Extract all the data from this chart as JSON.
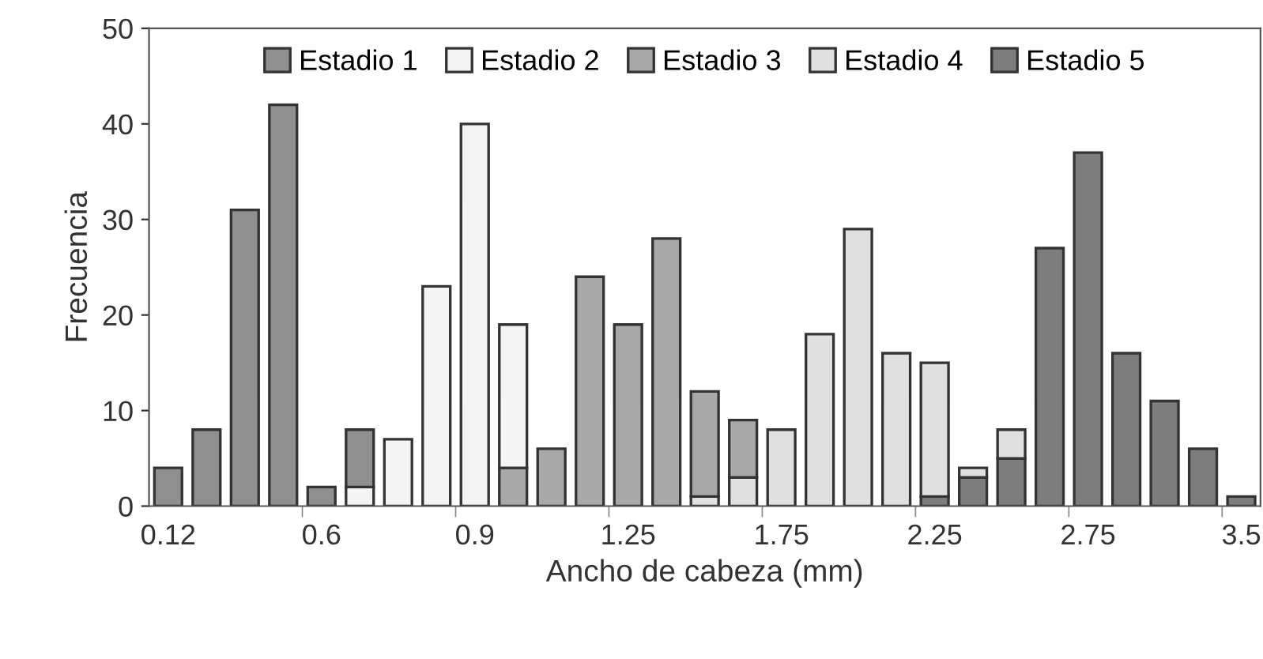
{
  "chart_data": {
    "type": "bar",
    "stacked": true,
    "xlabel": "Ancho de cabeza (mm)",
    "ylabel": "Frecuencia",
    "categories": [
      "0.12",
      null,
      null,
      null,
      "0.6",
      null,
      null,
      null,
      "0.9",
      null,
      null,
      null,
      "1.25",
      null,
      null,
      null,
      "1.75",
      null,
      null,
      null,
      "2.25",
      null,
      null,
      null,
      "2.75",
      null,
      null,
      null,
      "3.5"
    ],
    "series": [
      {
        "name": "Estadio 5",
        "color": "#7d7d7d",
        "values": [
          null,
          null,
          null,
          null,
          null,
          null,
          null,
          null,
          null,
          null,
          null,
          null,
          null,
          null,
          null,
          null,
          null,
          null,
          null,
          null,
          1,
          3,
          5,
          27,
          37,
          16,
          11,
          6,
          1
        ]
      },
      {
        "name": "Estadio 4",
        "color": "#e0e0e0",
        "values": [
          null,
          null,
          null,
          null,
          null,
          null,
          null,
          null,
          null,
          null,
          null,
          null,
          null,
          null,
          1,
          3,
          8,
          18,
          29,
          16,
          14,
          1,
          3,
          null,
          null,
          null,
          null,
          null,
          null
        ]
      },
      {
        "name": "Estadio 3",
        "color": "#a8a8a8",
        "values": [
          null,
          null,
          null,
          null,
          null,
          null,
          null,
          null,
          null,
          4,
          6,
          24,
          19,
          28,
          11,
          6,
          null,
          null,
          null,
          null,
          null,
          null,
          null,
          null,
          null,
          null,
          null,
          null,
          null
        ]
      },
      {
        "name": "Estadio 2",
        "color": "#f4f4f4",
        "values": [
          null,
          null,
          null,
          null,
          null,
          2,
          7,
          23,
          40,
          15,
          null,
          null,
          null,
          null,
          null,
          null,
          null,
          null,
          null,
          null,
          null,
          null,
          null,
          null,
          null,
          null,
          null,
          null,
          null
        ]
      },
      {
        "name": "Estadio 1",
        "color": "#8f8f8f",
        "values": [
          4,
          8,
          31,
          42,
          2,
          6,
          null,
          null,
          null,
          null,
          null,
          null,
          null,
          null,
          null,
          null,
          null,
          null,
          null,
          null,
          null,
          null,
          null,
          null,
          null,
          null,
          null,
          null,
          null
        ]
      }
    ],
    "ylim": [
      0,
      50
    ],
    "yticks": [
      0,
      10,
      20,
      30,
      40,
      50
    ],
    "grid": false,
    "legend": "top"
  }
}
